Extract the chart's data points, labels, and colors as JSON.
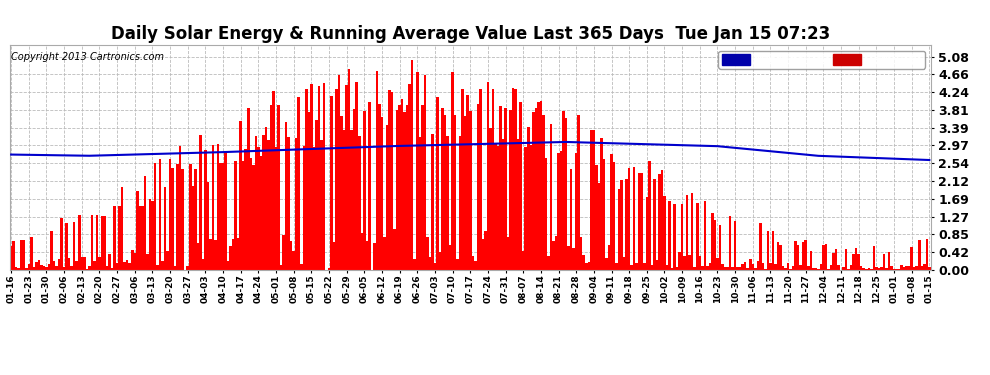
{
  "title": "Daily Solar Energy & Running Average Value Last 365 Days  Tue Jan 15 07:23",
  "copyright": "Copyright 2013 Cartronics.com",
  "ylim": [
    0.0,
    5.36
  ],
  "yticks": [
    0.0,
    0.42,
    0.85,
    1.27,
    1.69,
    2.12,
    2.54,
    2.97,
    3.39,
    3.81,
    4.24,
    4.66,
    5.08
  ],
  "bar_color": "#FF0000",
  "avg_line_color": "#0000CC",
  "bg_color": "#FFFFFF",
  "grid_color": "#BBBBBB",
  "legend_avg_bg": "#0000AA",
  "legend_daily_bg": "#CC0000",
  "title_fontsize": 12,
  "n_days": 365,
  "seed": 7
}
